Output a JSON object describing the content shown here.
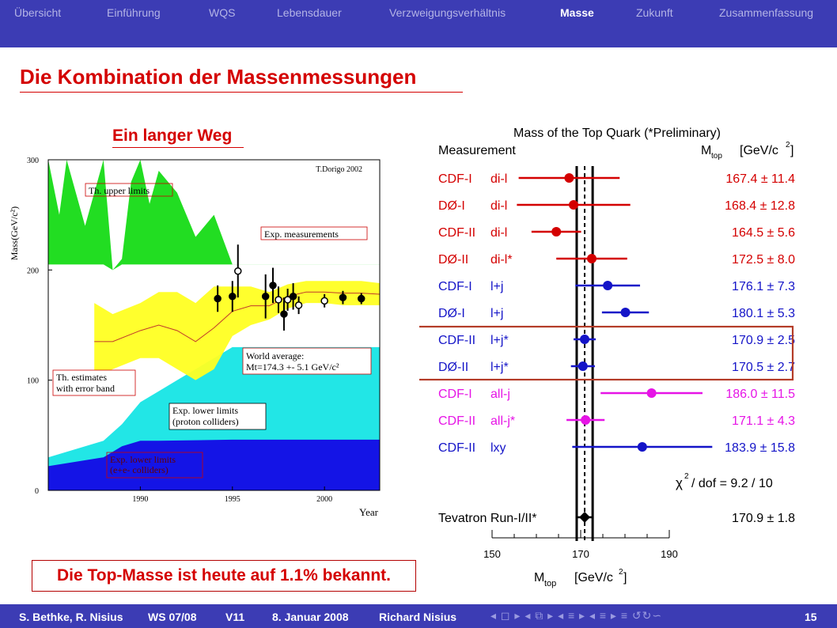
{
  "nav": {
    "items": [
      "Übersicht",
      "Einführung",
      "WQS",
      "Lebensdauer",
      "Verzweigungsverhältnis",
      "Masse",
      "Zukunft",
      "Zusammenfassung"
    ],
    "active_index": 5
  },
  "slide": {
    "title": "Die Kombination der Massenmessungen",
    "subtitle": "Ein langer Weg",
    "note": "Die Top-Masse ist heute auf 1.1% bekannt."
  },
  "footer": {
    "authors": "S. Bethke, R. Nisius",
    "semester": "WS 07/08",
    "lecture": "V11",
    "date": "8. Januar 2008",
    "speaker": "Richard Nisius",
    "page": "15",
    "nav_symbols": "◂ ◻ ▸ ◂ ⧉ ▸ ◂ ≡ ▸ ◂ ≡ ▸   ≡   ↺↻∽"
  },
  "colors": {
    "accent": "#d40000",
    "bar": "#3c3cb4"
  },
  "chart_data": [
    {
      "type": "area",
      "credit": "T.Dorigo 2002",
      "ylabel": "Mass(GeV/c²)",
      "xlabel": "Year",
      "xlim": [
        1985,
        2003
      ],
      "ylim": [
        0,
        300
      ],
      "x_ticks": [
        1990,
        1995,
        2000
      ],
      "y_ticks": [
        0,
        100,
        200,
        300
      ],
      "annotations": {
        "upper": "Th. upper limits",
        "exp": "Exp. measurements",
        "world1": "World average:",
        "world2": "Mt=174.3 +- 5.1 GeV/c²",
        "est1": "Th. estimates",
        "est2": "with error band",
        "plow1": "Exp. lower limits",
        "plow2": "(proton colliders)",
        "elow1": "Exp. lower limits",
        "elow2": "(e+e- colliders)"
      },
      "series": [
        {
          "name": "Th. upper limits",
          "color": "#22dd22",
          "x": [
            1985,
            1985.6,
            1986,
            1987,
            1988,
            1988.5,
            1989,
            1989.5,
            1990,
            1990.5,
            1991,
            1992,
            1993,
            1994,
            1995,
            1996,
            1997,
            2003
          ],
          "y": [
            300,
            250,
            300,
            240,
            300,
            200,
            210,
            280,
            300,
            260,
            290,
            270,
            230,
            250,
            205,
            205,
            205,
            205
          ]
        },
        {
          "name": "Exp. lower limits (proton colliders)",
          "color": "#22e6e6",
          "x": [
            1985,
            1988,
            1989,
            1990,
            1991,
            1992,
            1993,
            1994,
            1995,
            1996,
            2003
          ],
          "y": [
            30,
            45,
            60,
            80,
            90,
            100,
            110,
            120,
            130,
            130,
            130
          ]
        },
        {
          "name": "Exp. lower limits (e+e- colliders)",
          "color": "#1414e6",
          "x": [
            1985,
            1988,
            1989,
            1990,
            1991,
            1995,
            2003
          ],
          "y": [
            22,
            30,
            40,
            45,
            45,
            46,
            46
          ]
        }
      ],
      "band": {
        "name": "Th. estimates",
        "color": "#ffff22",
        "x": [
          1987.5,
          1988.5,
          1990,
          1991,
          1992,
          1993,
          1994,
          1995,
          1996,
          1997,
          1998,
          1999,
          2000,
          2001,
          2002,
          2003
        ],
        "upper": [
          170,
          160,
          170,
          180,
          180,
          170,
          185,
          185,
          185,
          180,
          187,
          190,
          190,
          190,
          190,
          188
        ],
        "lower": [
          100,
          110,
          120,
          120,
          110,
          100,
          110,
          140,
          150,
          155,
          165,
          170,
          170,
          168,
          168,
          168
        ]
      },
      "measurements": {
        "x": [
          1994.2,
          1995,
          1995.3,
          1996.8,
          1997.2,
          1997.5,
          1997.8,
          1998,
          1998.3,
          1998.6,
          2000,
          2001,
          2002
        ],
        "y": [
          174,
          176,
          199,
          176,
          186,
          173,
          160,
          173,
          176,
          168,
          172,
          175,
          174
        ],
        "err": [
          12,
          14,
          24,
          20,
          16,
          12,
          15,
          10,
          12,
          8,
          6,
          6,
          5
        ],
        "open": [
          false,
          false,
          true,
          false,
          false,
          true,
          false,
          true,
          false,
          true,
          true,
          false,
          false
        ]
      }
    },
    {
      "type": "scatter",
      "title": "Mass of the Top Quark (*Preliminary)",
      "column_measurement": "Measurement",
      "column_mass": "M",
      "column_mass_sub": "top",
      "column_unit": "[GeV/c",
      "xlabel": "M",
      "xlabel_sub": "top",
      "xlabel_unit": "[GeV/c",
      "xlim": [
        150,
        190
      ],
      "x_ticks": [
        150,
        170,
        190
      ],
      "combined_value": 170.9,
      "combined_error": 1.8,
      "chi2_label": "/ dof  =  9.2 / 10",
      "rows": [
        {
          "exp": "CDF-I",
          "ch": "di-l",
          "val": 167.4,
          "err": 11.4,
          "label": "167.4 ± 11.4",
          "color": "#d40000"
        },
        {
          "exp": "DØ-I",
          "ch": "di-l",
          "val": 168.4,
          "err": 12.8,
          "label": "168.4 ± 12.8",
          "color": "#d40000"
        },
        {
          "exp": "CDF-II",
          "ch": "di-l",
          "val": 164.5,
          "err": 5.6,
          "label": "164.5 ±  5.6",
          "color": "#d40000"
        },
        {
          "exp": "DØ-II",
          "ch": "di-l*",
          "val": 172.5,
          "err": 8.0,
          "label": "172.5 ±  8.0",
          "color": "#d40000"
        },
        {
          "exp": "CDF-I",
          "ch": "l+j",
          "val": 176.1,
          "err": 7.3,
          "label": "176.1 ±  7.3",
          "color": "#1414c8"
        },
        {
          "exp": "DØ-I",
          "ch": "l+j",
          "val": 180.1,
          "err": 5.3,
          "label": "180.1 ±  5.3",
          "color": "#1414c8"
        },
        {
          "exp": "CDF-II",
          "ch": "l+j*",
          "val": 170.9,
          "err": 2.5,
          "label": "170.9 ±  2.5",
          "color": "#1414c8"
        },
        {
          "exp": "DØ-II",
          "ch": "l+j*",
          "val": 170.5,
          "err": 2.7,
          "label": "170.5 ±  2.7",
          "color": "#1414c8"
        },
        {
          "exp": "CDF-I",
          "ch": "all-j",
          "val": 186.0,
          "err": 11.5,
          "label": "186.0 ± 11.5",
          "color": "#e614e6"
        },
        {
          "exp": "CDF-II",
          "ch": "all-j*",
          "val": 171.1,
          "err": 4.3,
          "label": "171.1 ±  4.3",
          "color": "#e614e6"
        },
        {
          "exp": "CDF-II",
          "ch": "lxy",
          "val": 183.9,
          "err": 15.8,
          "label": "183.9 ± 15.8",
          "color": "#1414c8"
        },
        {
          "exp": "Tevatron Run-I/II*",
          "ch": "",
          "val": 170.9,
          "err": 1.8,
          "label": "170.9 ±  1.8",
          "color": "#000000"
        }
      ],
      "highlight_rows": [
        6,
        7
      ]
    }
  ]
}
